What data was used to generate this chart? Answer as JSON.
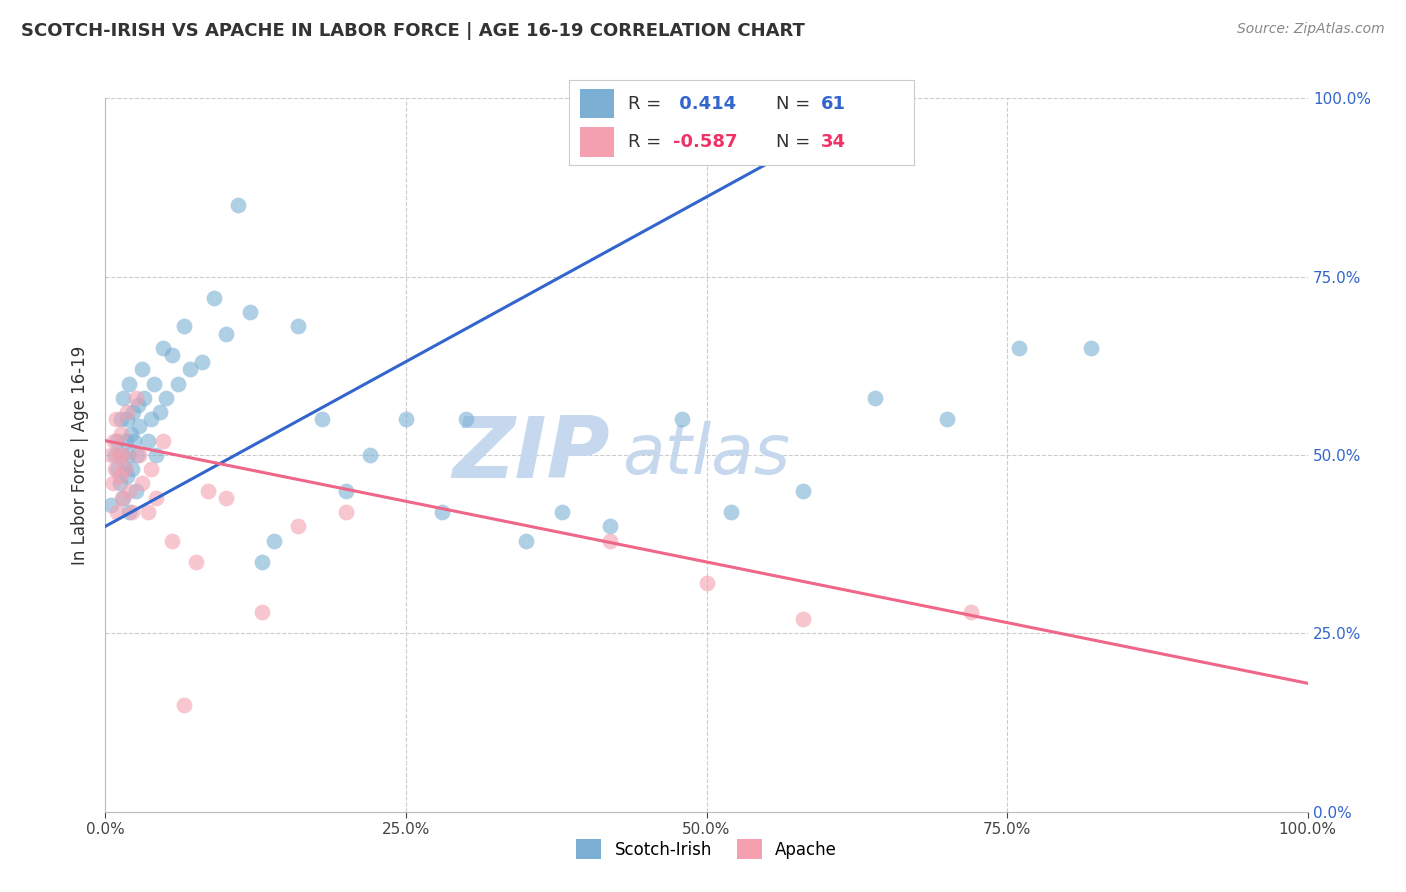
{
  "title": "SCOTCH-IRISH VS APACHE IN LABOR FORCE | AGE 16-19 CORRELATION CHART",
  "source": "Source: ZipAtlas.com",
  "ylabel": "In Labor Force | Age 16-19",
  "xlim": [
    0.0,
    1.0
  ],
  "ylim": [
    0.0,
    1.0
  ],
  "xticks": [
    0.0,
    0.25,
    0.5,
    0.75,
    1.0
  ],
  "yticks": [
    0.0,
    0.25,
    0.5,
    0.75,
    1.0
  ],
  "scotch_irish_R": 0.414,
  "scotch_irish_N": 61,
  "apache_R": -0.587,
  "apache_N": 34,
  "scotch_irish_color": "#7BAFD4",
  "apache_color": "#F4A0B0",
  "scotch_irish_line_color": "#3366CC",
  "apache_line_color": "#EE6688",
  "watermark_color": "#C5D8EE",
  "scotch_irish_x": [
    0.005,
    0.008,
    0.01,
    0.01,
    0.012,
    0.013,
    0.014,
    0.015,
    0.015,
    0.016,
    0.017,
    0.018,
    0.018,
    0.019,
    0.02,
    0.02,
    0.021,
    0.022,
    0.023,
    0.024,
    0.025,
    0.026,
    0.027,
    0.028,
    0.03,
    0.032,
    0.035,
    0.038,
    0.04,
    0.042,
    0.045,
    0.048,
    0.05,
    0.055,
    0.06,
    0.065,
    0.07,
    0.08,
    0.09,
    0.1,
    0.11,
    0.12,
    0.13,
    0.14,
    0.16,
    0.18,
    0.2,
    0.22,
    0.25,
    0.28,
    0.3,
    0.35,
    0.38,
    0.42,
    0.48,
    0.52,
    0.58,
    0.64,
    0.7,
    0.76,
    0.82
  ],
  "scotch_irish_y": [
    0.43,
    0.5,
    0.48,
    0.52,
    0.46,
    0.55,
    0.5,
    0.44,
    0.58,
    0.48,
    0.52,
    0.47,
    0.55,
    0.5,
    0.42,
    0.6,
    0.53,
    0.48,
    0.56,
    0.52,
    0.45,
    0.5,
    0.57,
    0.54,
    0.62,
    0.58,
    0.52,
    0.55,
    0.6,
    0.5,
    0.56,
    0.65,
    0.58,
    0.64,
    0.6,
    0.68,
    0.62,
    0.63,
    0.72,
    0.67,
    0.85,
    0.7,
    0.35,
    0.38,
    0.68,
    0.55,
    0.45,
    0.5,
    0.55,
    0.42,
    0.55,
    0.38,
    0.42,
    0.4,
    0.55,
    0.42,
    0.45,
    0.58,
    0.55,
    0.65,
    0.65
  ],
  "apache_x": [
    0.005,
    0.006,
    0.007,
    0.008,
    0.009,
    0.01,
    0.011,
    0.012,
    0.013,
    0.014,
    0.015,
    0.016,
    0.018,
    0.02,
    0.022,
    0.025,
    0.028,
    0.03,
    0.035,
    0.038,
    0.042,
    0.048,
    0.055,
    0.065,
    0.075,
    0.085,
    0.1,
    0.13,
    0.16,
    0.2,
    0.42,
    0.5,
    0.58,
    0.72
  ],
  "apache_y": [
    0.5,
    0.46,
    0.52,
    0.48,
    0.55,
    0.42,
    0.5,
    0.47,
    0.53,
    0.44,
    0.5,
    0.48,
    0.56,
    0.45,
    0.42,
    0.58,
    0.5,
    0.46,
    0.42,
    0.48,
    0.44,
    0.52,
    0.38,
    0.15,
    0.35,
    0.45,
    0.44,
    0.28,
    0.4,
    0.42,
    0.38,
    0.32,
    0.27,
    0.28
  ]
}
